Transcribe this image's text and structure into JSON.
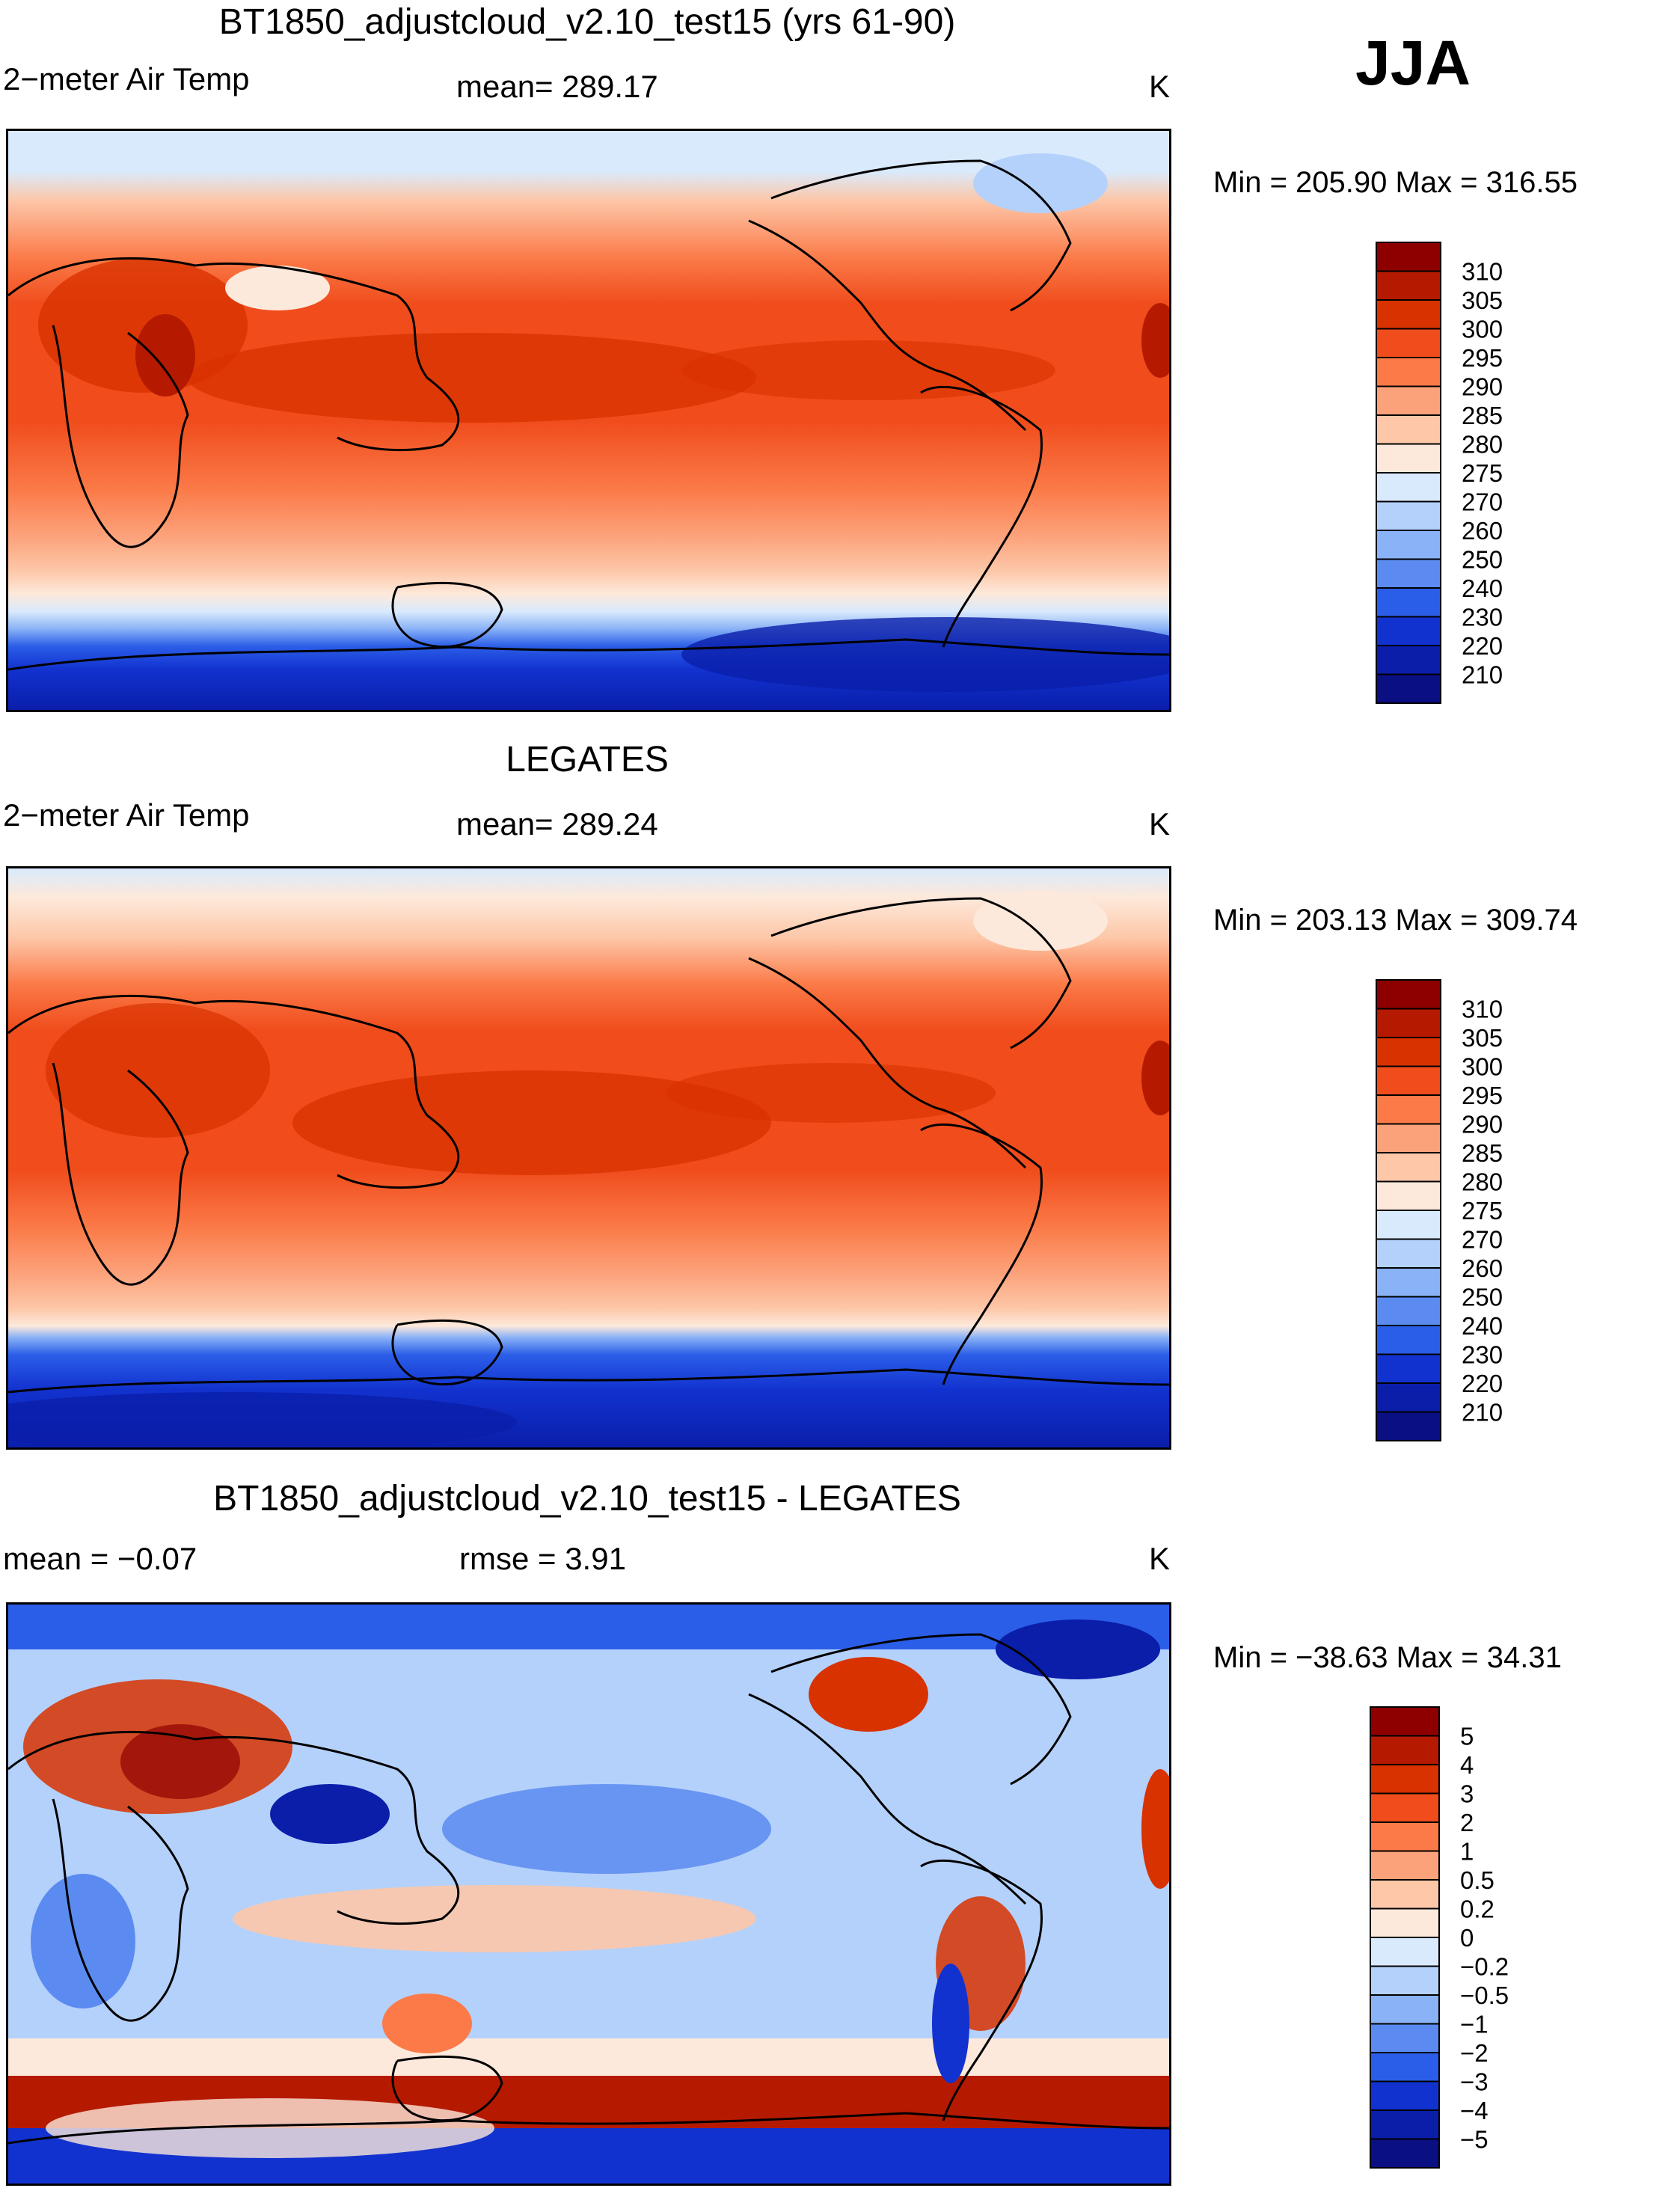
{
  "season": "JJA",
  "panels": [
    {
      "title": "BT1850_adjustcloud_v2.10_test15 (yrs 61-90)",
      "variable": "2−meter Air Temp",
      "stat": "mean= 289.17",
      "units": "K",
      "minmax": "Min = 205.90 Max = 316.55",
      "colorbar": {
        "labels": [
          "310",
          "305",
          "300",
          "295",
          "290",
          "285",
          "280",
          "275",
          "270",
          "260",
          "250",
          "240",
          "230",
          "220",
          "210"
        ],
        "colors": [
          "#8e0000",
          "#b51a00",
          "#d83200",
          "#f04c1c",
          "#fb7a48",
          "#fca27b",
          "#fdc7a8",
          "#fde9db",
          "#d9eafc",
          "#b4d1fb",
          "#8ab2f6",
          "#5b8bf0",
          "#2b5ee8",
          "#1232cf",
          "#0a1eaa",
          "#0a0f82"
        ]
      }
    },
    {
      "title": "LEGATES",
      "variable": "2−meter Air Temp",
      "stat": "mean= 289.24",
      "units": "K",
      "minmax": "Min = 203.13 Max = 309.74",
      "colorbar": {
        "labels": [
          "310",
          "305",
          "300",
          "295",
          "290",
          "285",
          "280",
          "275",
          "270",
          "260",
          "250",
          "240",
          "230",
          "220",
          "210"
        ],
        "colors": [
          "#8e0000",
          "#b51a00",
          "#d83200",
          "#f04c1c",
          "#fb7a48",
          "#fca27b",
          "#fdc7a8",
          "#fde9db",
          "#d9eafc",
          "#b4d1fb",
          "#8ab2f6",
          "#5b8bf0",
          "#2b5ee8",
          "#1232cf",
          "#0a1eaa",
          "#0a0f82"
        ]
      }
    },
    {
      "title": "BT1850_adjustcloud_v2.10_test15 - LEGATES",
      "variable": "mean =   −0.07",
      "stat": "rmse =     3.91",
      "units": "K",
      "minmax": "Min = −38.63 Max =   34.31",
      "colorbar": {
        "labels": [
          "5",
          "4",
          "3",
          "2",
          "1",
          "0.5",
          "0.2",
          "0",
          "−0.2",
          "−0.5",
          "−1",
          "−2",
          "−3",
          "−4",
          "−5"
        ],
        "colors": [
          "#8e0000",
          "#b51a00",
          "#d83200",
          "#f04c1c",
          "#fb7a48",
          "#fca27b",
          "#fdc7a8",
          "#fde9db",
          "#d9eafc",
          "#b4d1fb",
          "#8ab2f6",
          "#5b8bf0",
          "#2b5ee8",
          "#1232cf",
          "#0a1eaa",
          "#0a0f82"
        ]
      }
    }
  ]
}
